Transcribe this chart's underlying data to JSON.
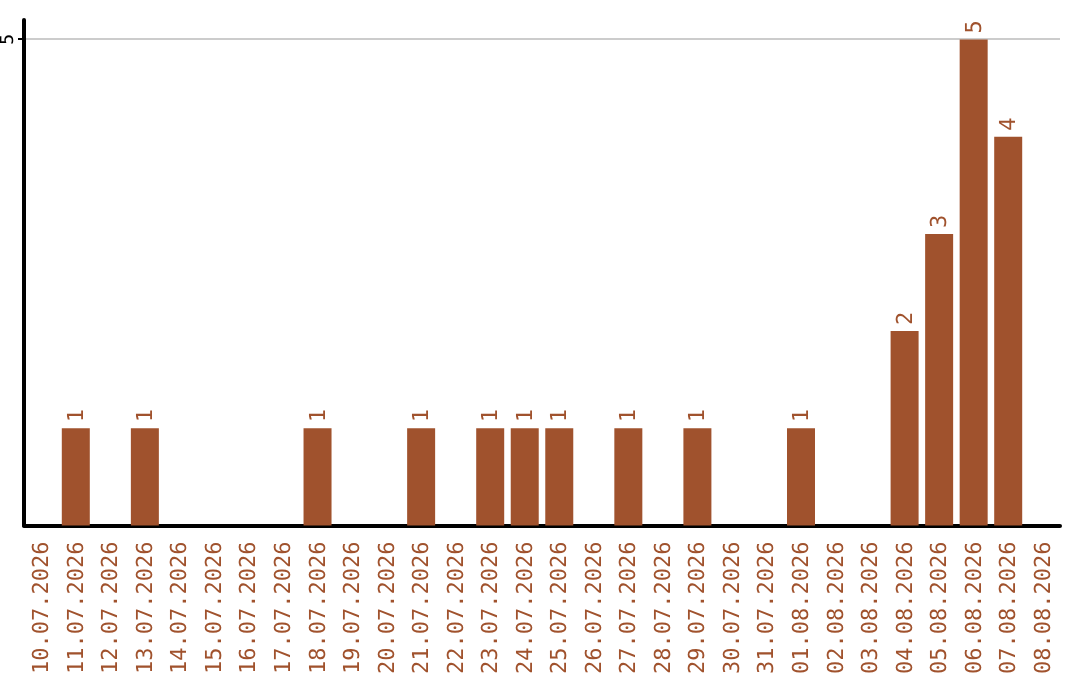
{
  "chart_data": {
    "type": "bar",
    "categories": [
      "10.07.2026",
      "11.07.2026",
      "12.07.2026",
      "13.07.2026",
      "14.07.2026",
      "15.07.2026",
      "16.07.2026",
      "17.07.2026",
      "18.07.2026",
      "19.07.2026",
      "20.07.2026",
      "21.07.2026",
      "22.07.2026",
      "23.07.2026",
      "24.07.2026",
      "25.07.2026",
      "26.07.2026",
      "27.07.2026",
      "28.07.2026",
      "29.07.2026",
      "30.07.2026",
      "31.07.2026",
      "01.08.2026",
      "02.08.2026",
      "03.08.2026",
      "04.08.2026",
      "05.08.2026",
      "06.08.2026",
      "07.08.2026",
      "08.08.2026"
    ],
    "values": [
      0,
      1,
      0,
      1,
      0,
      0,
      0,
      0,
      1,
      0,
      0,
      1,
      0,
      1,
      1,
      1,
      0,
      1,
      0,
      1,
      0,
      0,
      1,
      0,
      0,
      2,
      3,
      5,
      4,
      0
    ],
    "color": "#a0522d",
    "value_labels": [
      null,
      "1",
      null,
      "1",
      null,
      null,
      null,
      null,
      "1",
      null,
      null,
      "1",
      null,
      "1",
      "1",
      "1",
      null,
      "1",
      null,
      "1",
      null,
      null,
      "1",
      null,
      null,
      "2",
      "3",
      "5",
      "4",
      null
    ],
    "ylim": [
      0,
      5.2
    ],
    "yticks": [
      5
    ],
    "grid": "y"
  }
}
